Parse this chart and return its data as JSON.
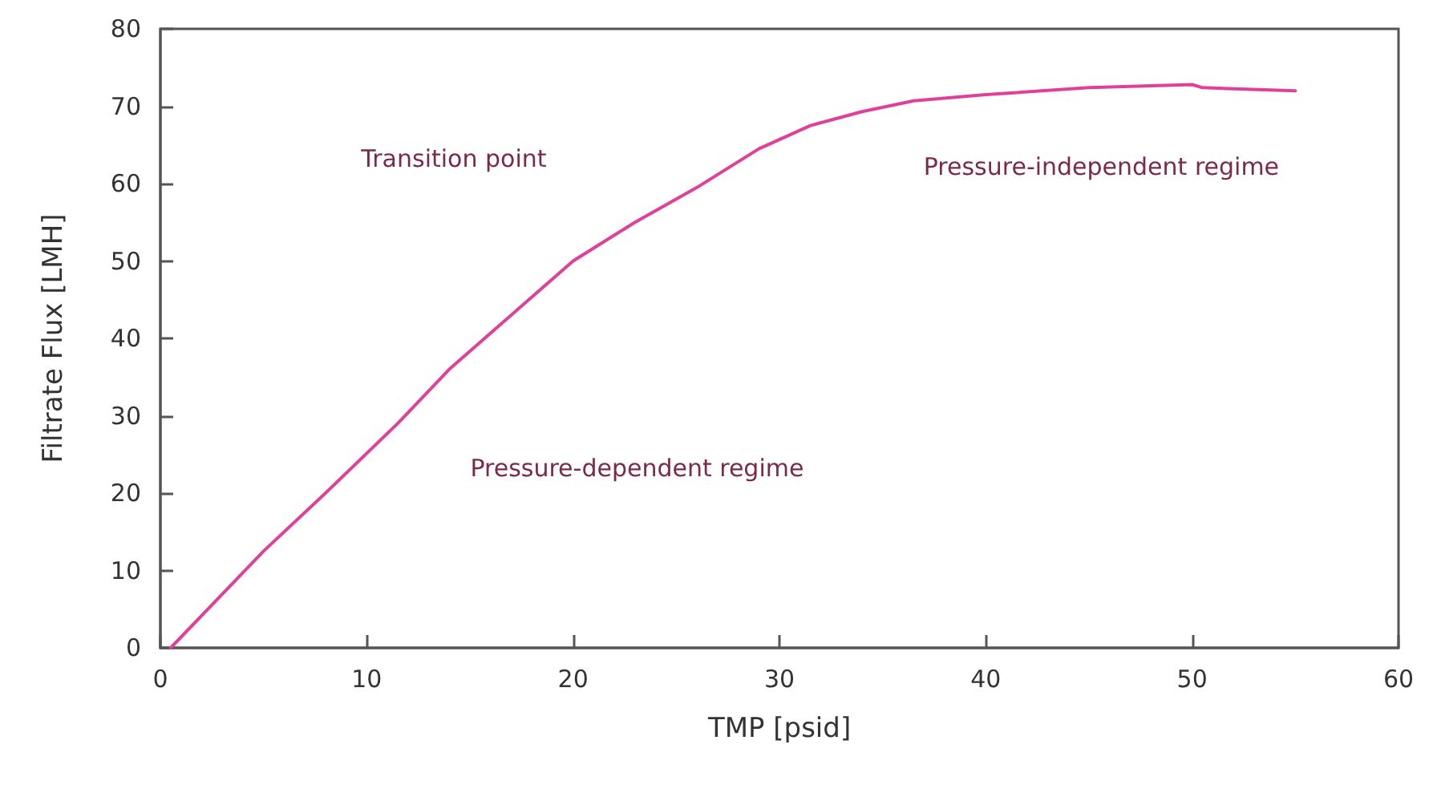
{
  "chart_data": {
    "type": "line",
    "xlabel": "TMP [psid]",
    "ylabel": "Filtrate Flux [LMH]",
    "xlim": [
      0,
      60
    ],
    "xticks": [
      0,
      10,
      20,
      30,
      40,
      50,
      60
    ],
    "ylim": [
      0,
      80
    ],
    "yticks": [
      0,
      10,
      20,
      30,
      40,
      50,
      60,
      70,
      80
    ],
    "grid": false,
    "marker": "none",
    "line_style": "solid",
    "series": [
      {
        "color": "#e0409a",
        "x": [
          0.5,
          5,
          8,
          11.5,
          14,
          17,
          20,
          23,
          26,
          29,
          31.5,
          34,
          36.5,
          40,
          45,
          50,
          50.5,
          55
        ],
        "values": [
          0,
          12.5,
          20,
          29,
          36,
          43,
          50,
          55,
          59.5,
          64.5,
          67.5,
          69.3,
          70.7,
          71.5,
          72.4,
          72.8,
          72.4,
          72
        ]
      }
    ],
    "annotations": [
      "Transition point",
      "Pressure-dependent regime",
      "Pressure-independent regime"
    ]
  }
}
